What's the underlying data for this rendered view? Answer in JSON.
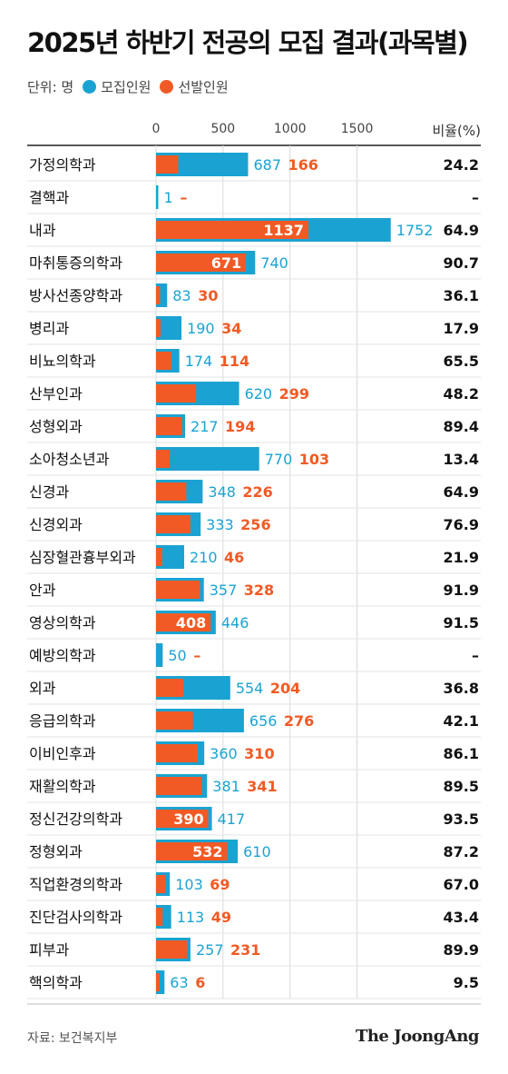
{
  "title": "2025년 하반기 전공의 모집 결과(과목별)",
  "legend": {
    "unit": "단위: 명",
    "recruit_label": "모집인원",
    "selected_label": "선발인원"
  },
  "ratio_header": "비율(%)",
  "source": "자료: 보건복지부",
  "brand": "The JoongAng",
  "colors": {
    "recruit": "#1aa3d2",
    "selected": "#f15a24",
    "grid": "#d9d9d9"
  },
  "chart_data": {
    "type": "bar",
    "orientation": "horizontal",
    "xlim": [
      0,
      1750
    ],
    "xticks": [
      0,
      500,
      1000,
      1500
    ],
    "categories": [
      "가정의학과",
      "결핵과",
      "내과",
      "마취통증의학과",
      "방사선종양학과",
      "병리과",
      "비뇨의학과",
      "산부인과",
      "성형외과",
      "소아청소년과",
      "신경과",
      "신경외과",
      "심장혈관흉부외과",
      "안과",
      "영상의학과",
      "예방의학과",
      "외과",
      "응급의학과",
      "이비인후과",
      "재활의학과",
      "정신건강의학과",
      "정형외과",
      "직업환경의학과",
      "진단검사의학과",
      "피부과",
      "핵의학과"
    ],
    "series": [
      {
        "name": "모집인원",
        "values": [
          687,
          1,
          1752,
          740,
          83,
          190,
          174,
          620,
          217,
          770,
          348,
          333,
          210,
          357,
          446,
          50,
          554,
          656,
          360,
          381,
          417,
          610,
          103,
          113,
          257,
          63
        ]
      },
      {
        "name": "선발인원",
        "values": [
          166,
          0,
          1137,
          671,
          30,
          34,
          114,
          299,
          194,
          103,
          226,
          256,
          46,
          328,
          408,
          0,
          204,
          276,
          310,
          341,
          390,
          532,
          69,
          49,
          231,
          6
        ]
      }
    ],
    "selected_labels": [
      "166",
      "–",
      "1137",
      "671",
      "30",
      "34",
      "114",
      "299",
      "194",
      "103",
      "226",
      "256",
      "46",
      "328",
      "408",
      "–",
      "204",
      "276",
      "310",
      "341",
      "390",
      "532",
      "69",
      "49",
      "231",
      "6"
    ],
    "ratios": [
      "24.2",
      "–",
      "64.9",
      "90.7",
      "36.1",
      "17.9",
      "65.5",
      "48.2",
      "89.4",
      "13.4",
      "64.9",
      "76.9",
      "21.9",
      "91.9",
      "91.5",
      "–",
      "36.8",
      "42.1",
      "86.1",
      "89.5",
      "93.5",
      "87.2",
      "67.0",
      "43.4",
      "89.9",
      "9.5"
    ]
  }
}
